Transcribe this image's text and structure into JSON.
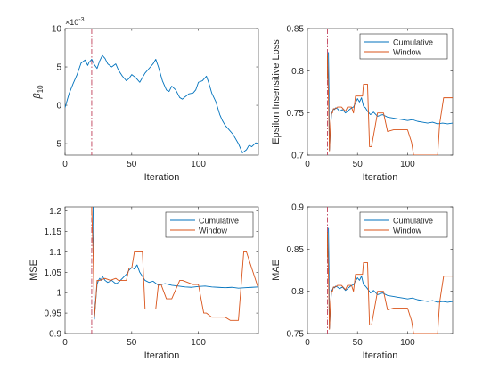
{
  "colors": {
    "cumulative": "#0072BD",
    "window": "#D95319",
    "vline": "#C0415A",
    "axis": "#262626",
    "legend_border": "#262626"
  },
  "chart_data": [
    {
      "type": "line",
      "xlabel": "Iteration",
      "ylabel_main": "β",
      "ylabel_sub": "10",
      "exponent_base": "×10",
      "exponent_power": "-3",
      "xlim": [
        0,
        145
      ],
      "ylim": [
        -6.5,
        10
      ],
      "xticks": [
        0,
        50,
        100
      ],
      "xtick_labels": [
        "0",
        "50",
        "100"
      ],
      "yticks": [
        -5,
        0,
        5,
        10
      ],
      "ytick_labels": [
        "-5",
        "0",
        "5",
        "10"
      ],
      "vline_x": 20,
      "series": [
        {
          "style": "cumulative",
          "x": [
            0,
            3,
            6,
            9,
            12,
            15,
            17,
            18,
            20,
            22,
            24,
            26,
            28,
            30,
            32,
            35,
            38,
            40,
            43,
            46,
            48,
            50,
            53,
            56,
            58,
            60,
            63,
            66,
            68,
            70,
            73,
            76,
            78,
            80,
            83,
            86,
            88,
            90,
            93,
            96,
            98,
            100,
            103,
            106,
            108,
            110,
            113,
            116,
            118,
            120,
            123,
            126,
            128,
            130,
            133,
            136,
            138,
            140,
            143,
            145
          ],
          "y": [
            -0.3,
            1.5,
            2.8,
            4.0,
            5.5,
            5.9,
            5.2,
            5.6,
            6.0,
            5.3,
            4.8,
            5.8,
            6.5,
            6.1,
            5.4,
            5.0,
            5.4,
            4.6,
            3.8,
            3.2,
            3.5,
            4.0,
            3.6,
            3.0,
            3.6,
            4.2,
            4.8,
            5.4,
            6.0,
            5.0,
            3.2,
            2.0,
            1.8,
            2.5,
            2.0,
            1.0,
            0.8,
            1.1,
            1.5,
            1.6,
            2.0,
            3.0,
            3.2,
            3.8,
            2.8,
            1.6,
            0.5,
            -1.2,
            -2.0,
            -2.6,
            -3.2,
            -3.8,
            -4.4,
            -5.0,
            -6.2,
            -5.8,
            -5.2,
            -5.4,
            -4.9,
            -5.0
          ]
        }
      ]
    },
    {
      "type": "line",
      "xlabel": "Iteration",
      "ylabel": "Epsilon Insensitive Loss",
      "xlim": [
        0,
        145
      ],
      "ylim": [
        0.7,
        0.85
      ],
      "xticks": [
        0,
        50,
        100
      ],
      "xtick_labels": [
        "0",
        "50",
        "100"
      ],
      "yticks": [
        0.7,
        0.75,
        0.8,
        0.85
      ],
      "ytick_labels": [
        "0.7",
        "0.75",
        "0.8",
        "0.85"
      ],
      "vline_x": 20,
      "legend": [
        "Cumulative",
        "Window"
      ],
      "series": [
        {
          "name": "Cumulative",
          "style": "cumulative",
          "x": [
            21,
            21.5,
            22,
            23,
            24,
            25,
            26,
            27,
            28,
            30,
            32,
            35,
            38,
            40,
            43,
            46,
            48,
            50,
            52,
            54,
            56,
            58,
            60,
            63,
            66,
            70,
            75,
            80,
            85,
            90,
            95,
            100,
            105,
            110,
            115,
            120,
            125,
            130,
            135,
            140,
            145
          ],
          "y": [
            0.822,
            0.78,
            0.706,
            0.73,
            0.748,
            0.752,
            0.755,
            0.754,
            0.756,
            0.755,
            0.752,
            0.754,
            0.75,
            0.752,
            0.755,
            0.757,
            0.762,
            0.767,
            0.763,
            0.768,
            0.758,
            0.756,
            0.752,
            0.748,
            0.751,
            0.746,
            0.748,
            0.745,
            0.744,
            0.743,
            0.742,
            0.741,
            0.742,
            0.74,
            0.739,
            0.738,
            0.739,
            0.737,
            0.738,
            0.737,
            0.738
          ]
        },
        {
          "name": "Window",
          "style": "window",
          "x": [
            20,
            20,
            21,
            22,
            23,
            24,
            25,
            26,
            28,
            30,
            34,
            38,
            40,
            44,
            46,
            48,
            50,
            55,
            56,
            60,
            62,
            64,
            70,
            76,
            80,
            86,
            96,
            100,
            104,
            106,
            110,
            116,
            120,
            124,
            130,
            132,
            136,
            140,
            145
          ],
          "y": [
            0.79,
            0.82,
            0.768,
            0.705,
            0.735,
            0.75,
            0.75,
            0.755,
            0.755,
            0.757,
            0.757,
            0.752,
            0.757,
            0.757,
            0.75,
            0.77,
            0.77,
            0.77,
            0.784,
            0.784,
            0.71,
            0.71,
            0.75,
            0.75,
            0.728,
            0.73,
            0.73,
            0.73,
            0.715,
            0.7,
            0.7,
            0.7,
            0.7,
            0.7,
            0.7,
            0.737,
            0.768,
            0.768,
            0.768
          ]
        }
      ]
    },
    {
      "type": "line",
      "xlabel": "Iteration",
      "ylabel": "MSE",
      "xlim": [
        0,
        145
      ],
      "ylim": [
        0.9,
        1.21
      ],
      "xticks": [
        0,
        50,
        100
      ],
      "xtick_labels": [
        "0",
        "50",
        "100"
      ],
      "yticks": [
        0.9,
        0.95,
        1.0,
        1.05,
        1.1,
        1.15,
        1.2
      ],
      "ytick_labels": [
        "0.9",
        "0.95",
        "1",
        "1.05",
        "1.1",
        "1.15",
        "1.2"
      ],
      "vline_x": 20,
      "legend": [
        "Cumulative",
        "Window"
      ],
      "series": [
        {
          "name": "Cumulative",
          "style": "cumulative",
          "x": [
            21,
            21.5,
            22,
            23,
            24,
            25,
            26,
            27,
            28,
            30,
            32,
            35,
            38,
            40,
            43,
            46,
            48,
            50,
            52,
            54,
            56,
            58,
            60,
            63,
            66,
            70,
            75,
            80,
            85,
            90,
            95,
            100,
            105,
            110,
            115,
            120,
            125,
            130,
            135,
            140,
            145
          ],
          "y": [
            1.21,
            1.1,
            0.935,
            0.98,
            1.02,
            1.03,
            1.035,
            1.03,
            1.04,
            1.03,
            1.025,
            1.03,
            1.022,
            1.025,
            1.035,
            1.045,
            1.055,
            1.062,
            1.058,
            1.068,
            1.05,
            1.04,
            1.03,
            1.025,
            1.028,
            1.018,
            1.022,
            1.018,
            1.016,
            1.014,
            1.013,
            1.015,
            1.016,
            1.014,
            1.013,
            1.012,
            1.013,
            1.011,
            1.012,
            1.013,
            1.014
          ]
        },
        {
          "name": "Window",
          "style": "window",
          "x": [
            20,
            20,
            21,
            22,
            23,
            24,
            26,
            30,
            34,
            38,
            40,
            46,
            48,
            50,
            52,
            54,
            56,
            58,
            60,
            62,
            68,
            70,
            72,
            76,
            78,
            80,
            86,
            88,
            96,
            100,
            104,
            106,
            110,
            116,
            120,
            124,
            130,
            134,
            136,
            140,
            145
          ],
          "y": [
            1.19,
            1.21,
            1.1,
            0.94,
            0.98,
            1.03,
            1.03,
            1.035,
            1.03,
            1.035,
            1.03,
            1.03,
            1.06,
            1.06,
            1.1,
            1.1,
            1.1,
            1.1,
            0.96,
            0.96,
            0.96,
            1.02,
            1.02,
            0.985,
            0.985,
            0.985,
            1.03,
            1.03,
            1.02,
            1.02,
            0.95,
            0.95,
            0.94,
            0.94,
            0.94,
            0.932,
            0.932,
            1.1,
            1.1,
            1.06,
            1.01
          ]
        }
      ]
    },
    {
      "type": "line",
      "xlabel": "Iteration",
      "ylabel": "MAE",
      "xlim": [
        0,
        145
      ],
      "ylim": [
        0.75,
        0.9
      ],
      "xticks": [
        0,
        50,
        100
      ],
      "xtick_labels": [
        "0",
        "50",
        "100"
      ],
      "yticks": [
        0.75,
        0.8,
        0.85,
        0.9
      ],
      "ytick_labels": [
        "0.75",
        "0.8",
        "0.85",
        "0.9"
      ],
      "vline_x": 20,
      "legend": [
        "Cumulative",
        "Window"
      ],
      "series": [
        {
          "name": "Cumulative",
          "style": "cumulative",
          "x": [
            21,
            21.5,
            22,
            23,
            24,
            25,
            26,
            27,
            28,
            30,
            32,
            35,
            38,
            40,
            43,
            46,
            48,
            50,
            52,
            54,
            56,
            58,
            60,
            63,
            66,
            70,
            75,
            80,
            85,
            90,
            95,
            100,
            105,
            110,
            115,
            120,
            125,
            130,
            135,
            140,
            145
          ],
          "y": [
            0.875,
            0.83,
            0.756,
            0.78,
            0.8,
            0.802,
            0.805,
            0.804,
            0.806,
            0.805,
            0.803,
            0.805,
            0.801,
            0.803,
            0.806,
            0.808,
            0.812,
            0.816,
            0.813,
            0.818,
            0.808,
            0.806,
            0.803,
            0.798,
            0.801,
            0.796,
            0.798,
            0.795,
            0.794,
            0.793,
            0.792,
            0.791,
            0.792,
            0.79,
            0.789,
            0.788,
            0.789,
            0.787,
            0.788,
            0.787,
            0.788
          ]
        },
        {
          "name": "Window",
          "style": "window",
          "x": [
            20,
            20,
            21,
            22,
            23,
            24,
            25,
            26,
            28,
            30,
            34,
            38,
            40,
            44,
            46,
            48,
            50,
            55,
            56,
            60,
            62,
            64,
            70,
            76,
            80,
            86,
            96,
            100,
            104,
            106,
            110,
            116,
            120,
            124,
            130,
            132,
            136,
            140,
            145
          ],
          "y": [
            0.84,
            0.87,
            0.818,
            0.755,
            0.785,
            0.8,
            0.8,
            0.805,
            0.805,
            0.807,
            0.807,
            0.802,
            0.807,
            0.807,
            0.8,
            0.82,
            0.82,
            0.82,
            0.834,
            0.834,
            0.76,
            0.76,
            0.8,
            0.8,
            0.778,
            0.78,
            0.78,
            0.78,
            0.765,
            0.75,
            0.75,
            0.75,
            0.75,
            0.75,
            0.75,
            0.787,
            0.818,
            0.818,
            0.818
          ]
        }
      ]
    }
  ]
}
